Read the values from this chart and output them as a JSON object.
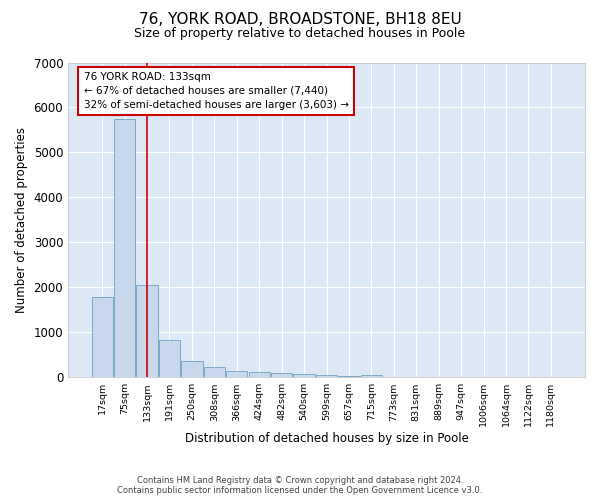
{
  "title_line1": "76, YORK ROAD, BROADSTONE, BH18 8EU",
  "title_line2": "Size of property relative to detached houses in Poole",
  "xlabel": "Distribution of detached houses by size in Poole",
  "ylabel": "Number of detached properties",
  "bar_color": "#c8d8ed",
  "bar_edge_color": "#7aaac8",
  "redline_color": "#cc0000",
  "annotation_box_color": "#cc0000",
  "categories": [
    "17sqm",
    "75sqm",
    "133sqm",
    "191sqm",
    "250sqm",
    "308sqm",
    "366sqm",
    "424sqm",
    "482sqm",
    "540sqm",
    "599sqm",
    "657sqm",
    "715sqm",
    "773sqm",
    "831sqm",
    "889sqm",
    "947sqm",
    "1006sqm",
    "1064sqm",
    "1122sqm",
    "1180sqm"
  ],
  "bar_heights": [
    1780,
    5750,
    2060,
    820,
    360,
    225,
    130,
    110,
    90,
    80,
    55,
    30,
    60,
    0,
    0,
    0,
    0,
    0,
    0,
    0,
    0
  ],
  "ylim": [
    0,
    7000
  ],
  "yticks": [
    0,
    1000,
    2000,
    3000,
    4000,
    5000,
    6000,
    7000
  ],
  "property_index": 2,
  "annotation_title": "76 YORK ROAD: 133sqm",
  "annotation_line1": "← 67% of detached houses are smaller (7,440)",
  "annotation_line2": "32% of semi-detached houses are larger (3,603) →",
  "footer_line1": "Contains HM Land Registry data © Crown copyright and database right 2024.",
  "footer_line2": "Contains public sector information licensed under the Open Government Licence v3.0.",
  "fig_background_color": "#ffffff",
  "plot_background_color": "#dce8f5",
  "grid_color": "#ffffff",
  "title1_fontsize": 11,
  "title2_fontsize": 9
}
